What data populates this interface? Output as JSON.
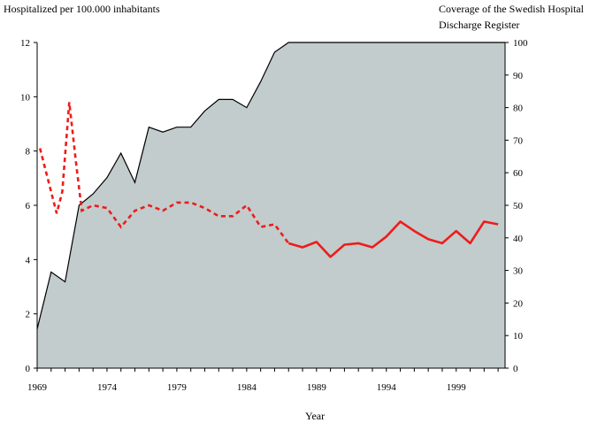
{
  "chart_data": {
    "type": "area",
    "title": "",
    "ylabel_left": "Hospitalized per 100.000 inhabitants",
    "ylabel_right_line1": "Coverage of the Swedish Hospital",
    "ylabel_right_line2": "Discharge Register",
    "xlabel": "Year",
    "x_ticks": [
      "1969",
      "1974",
      "1979",
      "1984",
      "1989",
      "1994",
      "1999"
    ],
    "x_tick_values": [
      1969,
      1974,
      1979,
      1984,
      1989,
      1994,
      1999
    ],
    "xlim": [
      1969,
      2002.5
    ],
    "y_left_ticks": [
      "0",
      "2",
      "4",
      "6",
      "8",
      "10",
      "12"
    ],
    "y_left_tick_values": [
      0,
      2,
      4,
      6,
      8,
      10,
      12
    ],
    "ylim_left": [
      0,
      12
    ],
    "y_right_ticks": [
      "0",
      "10",
      "20",
      "30",
      "40",
      "50",
      "60",
      "70",
      "80",
      "90",
      "100"
    ],
    "y_right_tick_values": [
      0,
      10,
      20,
      30,
      40,
      50,
      60,
      70,
      80,
      90,
      100
    ],
    "ylim_right": [
      0,
      100
    ],
    "grid": false,
    "colors": {
      "coverage_fill": "#c2cccc",
      "coverage_line": "#000000",
      "rate_line": "#ee1c1c",
      "axis": "#000000"
    },
    "series": [
      {
        "axis": "right",
        "style": "filled-area",
        "x": [
          1969,
          1970,
          1971,
          1972,
          1973,
          1974,
          1975,
          1976,
          1977,
          1978,
          1979,
          1980,
          1981,
          1982,
          1983,
          1984,
          1985,
          1986,
          1987,
          1988,
          1989,
          1990,
          1991,
          1992,
          1993,
          1994,
          1995,
          1996,
          1997,
          1998,
          1999,
          2000,
          2001,
          2002.5
        ],
        "values": [
          12,
          29.5,
          26.5,
          50,
          53.5,
          58.5,
          66,
          57,
          74,
          72.5,
          74,
          74,
          79,
          82.5,
          82.5,
          80,
          88,
          97,
          100,
          100,
          100,
          100,
          100,
          100,
          100,
          100,
          100,
          100,
          100,
          100,
          100,
          100,
          100,
          100
        ]
      },
      {
        "axis": "left",
        "style": "dashed",
        "x": [
          1969.2,
          1970,
          1970.4,
          1970.8,
          1971.3,
          1971.8,
          1972.2,
          1973,
          1974,
          1975,
          1976,
          1977,
          1978,
          1979,
          1980,
          1981,
          1982,
          1983,
          1984,
          1985,
          1986,
          1987
        ],
        "values": [
          8.1,
          6.5,
          5.7,
          6.5,
          9.8,
          7.5,
          5.8,
          6.0,
          5.9,
          5.2,
          5.8,
          6.0,
          5.8,
          6.1,
          6.1,
          5.9,
          5.6,
          5.6,
          6.0,
          5.2,
          5.3,
          4.6
        ]
      },
      {
        "axis": "left",
        "style": "solid",
        "x": [
          1987,
          1988,
          1989,
          1990,
          1991,
          1992,
          1993,
          1994,
          1995,
          1996,
          1997,
          1998,
          1999,
          2000,
          2001,
          2002
        ],
        "values": [
          4.6,
          4.45,
          4.65,
          4.1,
          4.55,
          4.6,
          4.45,
          4.85,
          5.4,
          5.05,
          4.75,
          4.6,
          5.05,
          4.6,
          5.4,
          5.3
        ]
      }
    ]
  }
}
